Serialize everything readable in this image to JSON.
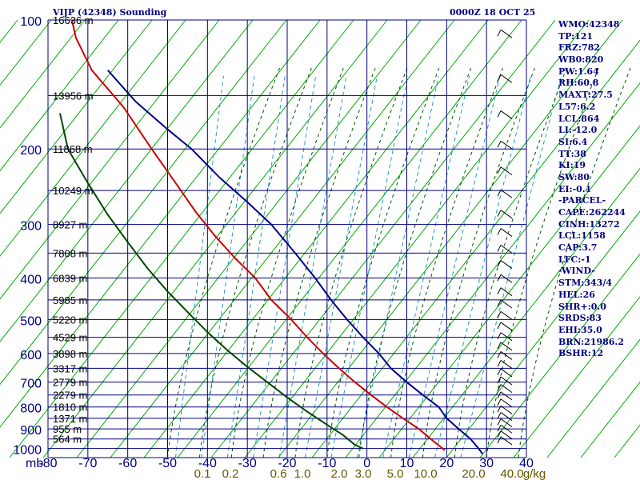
{
  "header": {
    "station_title": "VIJP (42348) Sounding",
    "time": "0000Z 18 OCT 25"
  },
  "stats": [
    "WMO:42348",
    "TP:121",
    "FRZ:782",
    "WB0:820",
    "PW:1.64",
    "RH:60.8",
    "MAXT:27.5",
    "L57:6.2",
    "LCL:864",
    "LI:-12.0",
    "SI:6.4",
    "TT:38",
    "KI:19",
    "SW:80",
    "EI:-0.1",
    "-PARCEL-",
    "CAPE:262244",
    "CINH:13272",
    "LCL:1158",
    "CAP:3.7",
    "LFC:-1",
    "-WIND-",
    "STM:343/4",
    "HEL:26",
    "SHR+:0.0",
    "SRDS:83",
    "EHI:35.0",
    "BRN:21986.2",
    "BSHR:12"
  ],
  "colors": {
    "grid": "#000080",
    "dry_adiabat": "#00aa00",
    "moist_adiabat": "#005500",
    "mixing_ratio": "#2299cc",
    "temperature": "#00008b",
    "dewpoint": "#cc0000",
    "parcel": "#004400",
    "wind_barb": "#000000",
    "text": "#000080"
  },
  "chart_data": {
    "type": "line",
    "title": "VIJP (42348) Sounding",
    "xlabel": "",
    "ylabel": "mb",
    "xlim": [
      -80,
      40
    ],
    "ylim": [
      1050,
      100
    ],
    "y_scale": "log",
    "grid": true,
    "pressure_ticks": [
      100,
      200,
      300,
      400,
      500,
      600,
      700,
      800,
      900,
      1000
    ],
    "pressure_labels": [
      "100",
      "200",
      "300",
      "400",
      "500",
      "600",
      "700",
      "800",
      "900",
      "1000"
    ],
    "temperature_ticks": [
      -80,
      -70,
      -60,
      -50,
      -40,
      -30,
      -20,
      -10,
      0,
      10,
      20,
      30,
      40
    ],
    "temperature_labels": [
      "-80",
      "-70",
      "-60",
      "-50",
      "-40",
      "-30",
      "-20",
      "-10",
      "0",
      "10",
      "20",
      "30",
      "40"
    ],
    "height_labels": [
      {
        "p": 100,
        "label": "16636 m"
      },
      {
        "p": 150,
        "label": "13956 m"
      },
      {
        "p": 200,
        "label": "11868 m"
      },
      {
        "p": 250,
        "label": "10249 m"
      },
      {
        "p": 300,
        "label": "8927 m"
      },
      {
        "p": 350,
        "label": "7808 m"
      },
      {
        "p": 400,
        "label": "6839 m"
      },
      {
        "p": 450,
        "label": "5985 m"
      },
      {
        "p": 500,
        "label": "5220 m"
      },
      {
        "p": 550,
        "label": "4529 m"
      },
      {
        "p": 600,
        "label": "3898 m"
      },
      {
        "p": 650,
        "label": "3317 m"
      },
      {
        "p": 700,
        "label": "2779 m"
      },
      {
        "p": 750,
        "label": "2279 m"
      },
      {
        "p": 800,
        "label": "1810 m"
      },
      {
        "p": 850,
        "label": "1371 m"
      },
      {
        "p": 900,
        "label": "955 m"
      },
      {
        "p": 950,
        "label": "564 m"
      }
    ],
    "mixing_ratio_labels": [
      "0.1",
      "0.2",
      "0.6",
      "1.0",
      "2.0",
      "3.0",
      "5.0",
      "10.0",
      "20.0",
      "40.0",
      "g/kg"
    ],
    "series": [
      {
        "key": "temperature",
        "points": [
          [
            -65,
            131
          ],
          [
            -58,
            155
          ],
          [
            -50,
            180
          ],
          [
            -44,
            200
          ],
          [
            -37,
            233
          ],
          [
            -30,
            266
          ],
          [
            -24,
            300
          ],
          [
            -18,
            350
          ],
          [
            -13,
            400
          ],
          [
            -9,
            450
          ],
          [
            -5,
            500
          ],
          [
            -1,
            550
          ],
          [
            3,
            600
          ],
          [
            6,
            650
          ],
          [
            10,
            700
          ],
          [
            14,
            750
          ],
          [
            18,
            800
          ],
          [
            20,
            850
          ],
          [
            23,
            900
          ],
          [
            26,
            950
          ],
          [
            28,
            1000
          ],
          [
            29,
            1030
          ]
        ]
      },
      {
        "key": "dewpoint",
        "points": [
          [
            -74,
            100
          ],
          [
            -73,
            110
          ],
          [
            -71,
            120
          ],
          [
            -69,
            131
          ],
          [
            -61,
            160
          ],
          [
            -54,
            200
          ],
          [
            -48,
            240
          ],
          [
            -43,
            280
          ],
          [
            -38,
            320
          ],
          [
            -33,
            360
          ],
          [
            -28,
            400
          ],
          [
            -24,
            450
          ],
          [
            -19,
            500
          ],
          [
            -15,
            550
          ],
          [
            -11,
            600
          ],
          [
            -7,
            650
          ],
          [
            -3,
            700
          ],
          [
            1,
            750
          ],
          [
            5,
            800
          ],
          [
            9,
            850
          ],
          [
            13,
            900
          ],
          [
            16,
            950
          ],
          [
            19,
            1000
          ],
          [
            19.5,
            1010
          ]
        ]
      },
      {
        "key": "parcel",
        "points": [
          [
            -77,
            165
          ],
          [
            -75,
            200
          ],
          [
            -70,
            240
          ],
          [
            -65,
            285
          ],
          [
            -60,
            330
          ],
          [
            -55,
            380
          ],
          [
            -50,
            430
          ],
          [
            -45,
            480
          ],
          [
            -40,
            535
          ],
          [
            -35,
            590
          ],
          [
            -30,
            645
          ],
          [
            -25,
            700
          ],
          [
            -20,
            760
          ],
          [
            -15,
            820
          ],
          [
            -10,
            880
          ],
          [
            -6,
            930
          ],
          [
            -3,
            980
          ],
          [
            -1,
            1000
          ]
        ]
      }
    ]
  }
}
